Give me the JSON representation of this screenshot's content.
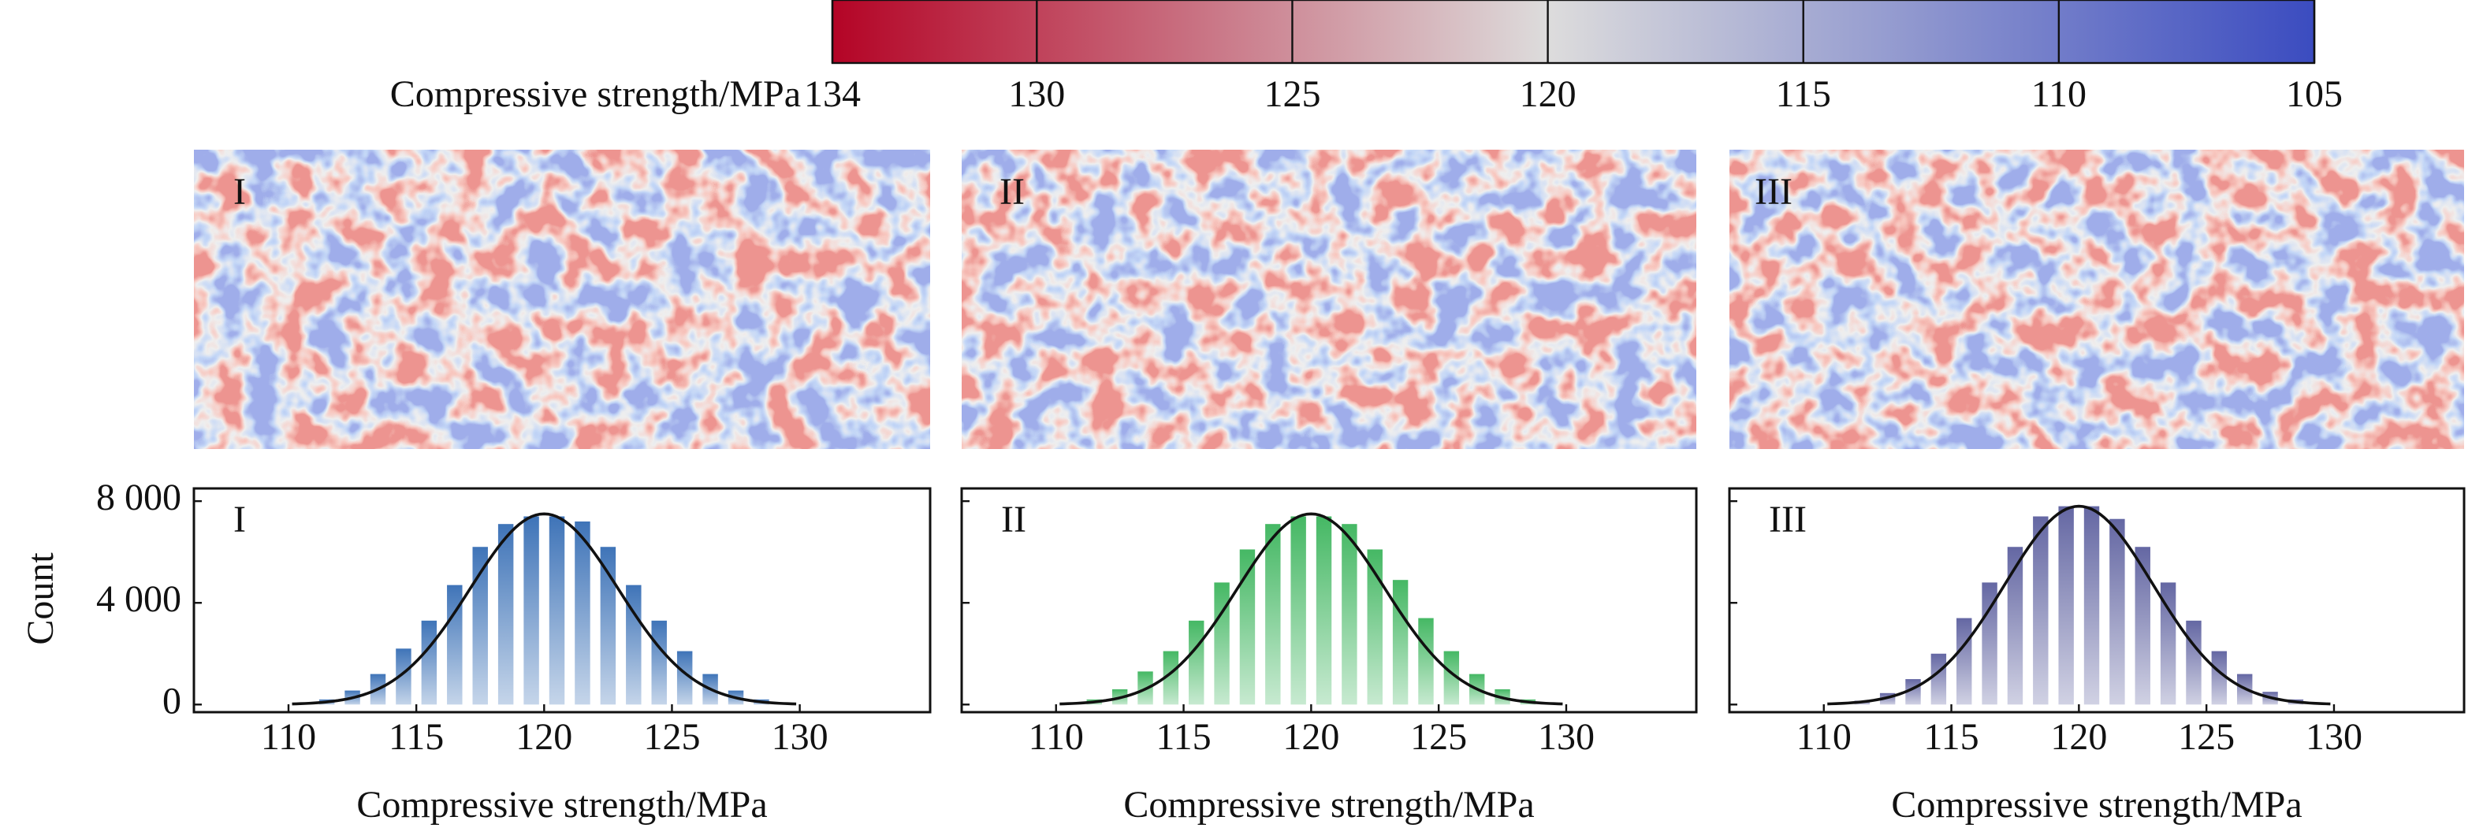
{
  "chart_data": [
    {
      "type": "colorbar",
      "label": "Compressive strength/MPa",
      "range": [
        134,
        105
      ],
      "ticks": [
        134,
        130,
        125,
        120,
        115,
        110,
        105
      ],
      "color_stops": [
        {
          "value": 134,
          "color": "#b40426"
        },
        {
          "value": 120,
          "color": "#dddcdc"
        },
        {
          "value": 105,
          "color": "#3b4cc0"
        }
      ]
    },
    {
      "type": "bar",
      "label": "I",
      "xlabel": "Compressive strength/MPa",
      "ylabel": "Count",
      "color": "#3f74b8",
      "x": [
        111.5,
        112.5,
        113.5,
        114.5,
        115.5,
        116.5,
        117.5,
        118.5,
        119.5,
        120.5,
        121.5,
        122.5,
        123.5,
        124.5,
        125.5,
        126.5,
        127.5,
        128.5
      ],
      "values": [
        200,
        550,
        1200,
        2200,
        3300,
        4700,
        6200,
        7100,
        7400,
        7400,
        7200,
        6200,
        4700,
        3300,
        2100,
        1200,
        550,
        200
      ],
      "fit": {
        "mean": 120,
        "sd": 2.9,
        "peak": 7500
      },
      "xlim": [
        106.3,
        135.1
      ],
      "xticks": [
        110,
        115,
        120,
        125,
        130
      ],
      "ylim": [
        -300,
        8500
      ],
      "yticks": [
        0,
        {
          "value": 4000,
          "label": "4 000"
        },
        {
          "value": 8000,
          "label": "8 000"
        }
      ],
      "show_ytick_labels": true
    },
    {
      "type": "bar",
      "label": "II",
      "xlabel": "Compressive strength/MPa",
      "color": "#45b864",
      "x": [
        111.5,
        112.5,
        113.5,
        114.5,
        115.5,
        116.5,
        117.5,
        118.5,
        119.5,
        120.5,
        121.5,
        122.5,
        123.5,
        124.5,
        125.5,
        126.5,
        127.5,
        128.5
      ],
      "values": [
        200,
        600,
        1300,
        2100,
        3300,
        4800,
        6100,
        7100,
        7400,
        7400,
        7100,
        6100,
        4900,
        3400,
        2100,
        1200,
        600,
        200
      ],
      "fit": {
        "mean": 120,
        "sd": 2.9,
        "peak": 7500
      },
      "xlim": [
        106.3,
        135.1
      ],
      "xticks": [
        110,
        115,
        120,
        125,
        130
      ],
      "ylim": [
        -300,
        8500
      ],
      "yticks": [
        0,
        4000,
        8000
      ],
      "show_ytick_labels": false
    },
    {
      "type": "bar",
      "label": "III",
      "xlabel": "Compressive strength/MPa",
      "color": "#6467a3",
      "x": [
        111.5,
        112.5,
        113.5,
        114.5,
        115.5,
        116.5,
        117.5,
        118.5,
        119.5,
        120.5,
        121.5,
        122.5,
        123.5,
        124.5,
        125.5,
        126.5,
        127.5,
        128.5
      ],
      "values": [
        150,
        450,
        1000,
        2000,
        3400,
        4800,
        6200,
        7400,
        7800,
        7800,
        7300,
        6200,
        4800,
        3300,
        2100,
        1200,
        500,
        200
      ],
      "fit": {
        "mean": 120,
        "sd": 2.9,
        "peak": 7800
      },
      "xlim": [
        106.3,
        135.1
      ],
      "xticks": [
        110,
        115,
        120,
        125,
        130
      ],
      "ylim": [
        -300,
        8500
      ],
      "yticks": [
        0,
        4000,
        8000
      ],
      "show_ytick_labels": false
    }
  ]
}
